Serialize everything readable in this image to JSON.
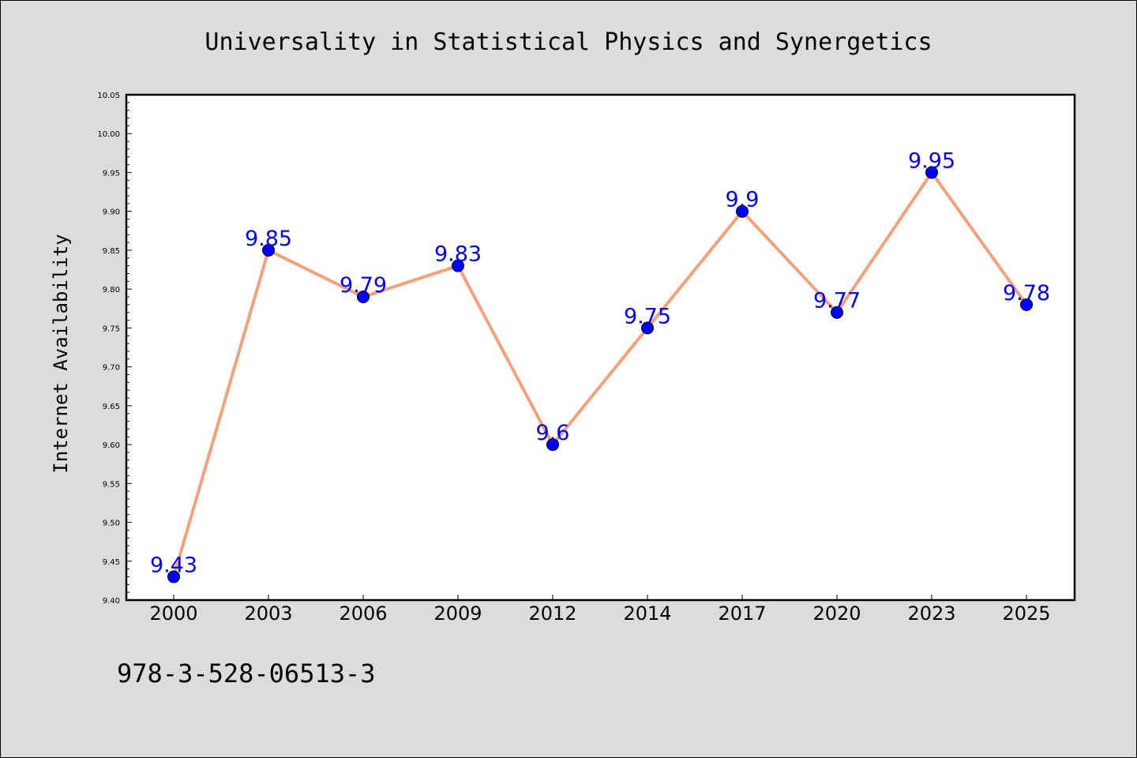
{
  "chart_data": {
    "type": "line",
    "title": "Universality in Statistical Physics and Synergetics",
    "xlabel": "",
    "ylabel": "Internet Availability",
    "categories": [
      "2000",
      "2003",
      "2006",
      "2009",
      "2012",
      "2014",
      "2017",
      "2020",
      "2023",
      "2025"
    ],
    "series": [
      {
        "values": [
          9.43,
          9.85,
          9.79,
          9.83,
          9.6,
          9.75,
          9.9,
          9.77,
          9.95,
          9.78
        ],
        "labels": [
          "9.43",
          "9.85",
          "9.79",
          "9.83",
          "9.6",
          "9.75",
          "9.9",
          "9.77",
          "9.95",
          "9.78"
        ],
        "line_color": "#f4a07a",
        "marker_color": "#0000ff",
        "label_color": "#0000ff"
      }
    ],
    "ylim": [
      9.4,
      10.05
    ],
    "yticks": [
      "9.40",
      "9.45",
      "9.50",
      "9.55",
      "9.60",
      "9.65",
      "9.70",
      "9.75",
      "9.80",
      "9.85",
      "9.90",
      "9.95",
      "10.00",
      "10.05"
    ],
    "grid": false,
    "legend": "none"
  },
  "footer": {
    "isbn": "978-3-528-06513-3"
  },
  "colors": {
    "background": "#dcdcdc",
    "plot_area": "#ffffff"
  }
}
